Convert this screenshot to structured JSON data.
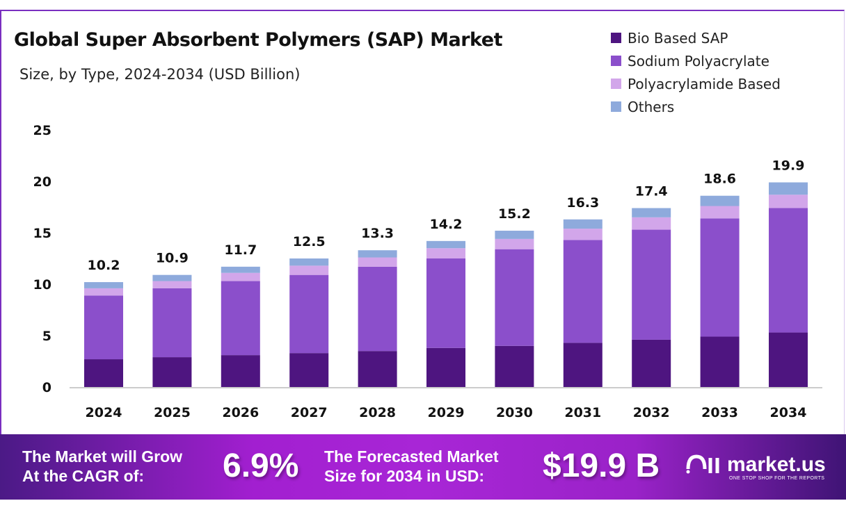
{
  "chart_data": {
    "type": "bar",
    "stacked": true,
    "title": "Global Super Absorbent Polymers (SAP) Market",
    "subtitle": "Size, by Type, 2024-2034 (USD Billion)",
    "categories": [
      "2024",
      "2025",
      "2026",
      "2027",
      "2028",
      "2029",
      "2030",
      "2031",
      "2032",
      "2033",
      "2034"
    ],
    "series": [
      {
        "name": "Bio Based SAP",
        "color": "#4e1580",
        "values": [
          2.7,
          2.9,
          3.1,
          3.3,
          3.5,
          3.8,
          4.0,
          4.3,
          4.6,
          4.9,
          5.3
        ]
      },
      {
        "name": "Sodium Polyacrylate",
        "color": "#8b4fcb",
        "values": [
          6.2,
          6.7,
          7.2,
          7.6,
          8.2,
          8.7,
          9.4,
          10.0,
          10.7,
          11.5,
          12.1
        ]
      },
      {
        "name": "Polyacrylamide Based",
        "color": "#d2a6ea",
        "values": [
          0.7,
          0.7,
          0.8,
          0.9,
          0.9,
          1.0,
          1.0,
          1.1,
          1.2,
          1.2,
          1.3
        ]
      },
      {
        "name": "Others",
        "color": "#8eaadc",
        "values": [
          0.6,
          0.6,
          0.6,
          0.7,
          0.7,
          0.7,
          0.8,
          0.9,
          0.9,
          1.0,
          1.2
        ]
      }
    ],
    "totals": [
      "10.2",
      "10.9",
      "11.7",
      "12.5",
      "13.3",
      "14.2",
      "15.2",
      "16.3",
      "17.4",
      "18.6",
      "19.9"
    ],
    "ylim": [
      0,
      25
    ],
    "yticks": [
      "0",
      "5",
      "10",
      "15",
      "20",
      "25"
    ],
    "grid": false,
    "legend": "top-right"
  },
  "footer": {
    "cagr_label_1": "The Market will Grow",
    "cagr_label_2": "At the CAGR of:",
    "cagr_value": "6.9%",
    "forecast_label_1": "The Forecasted Market",
    "forecast_label_2": "Size for 2034 in USD:",
    "forecast_value": "$19.9 B",
    "logo_text": "market.us",
    "logo_tagline": "ONE STOP SHOP FOR THE REPORTS"
  }
}
